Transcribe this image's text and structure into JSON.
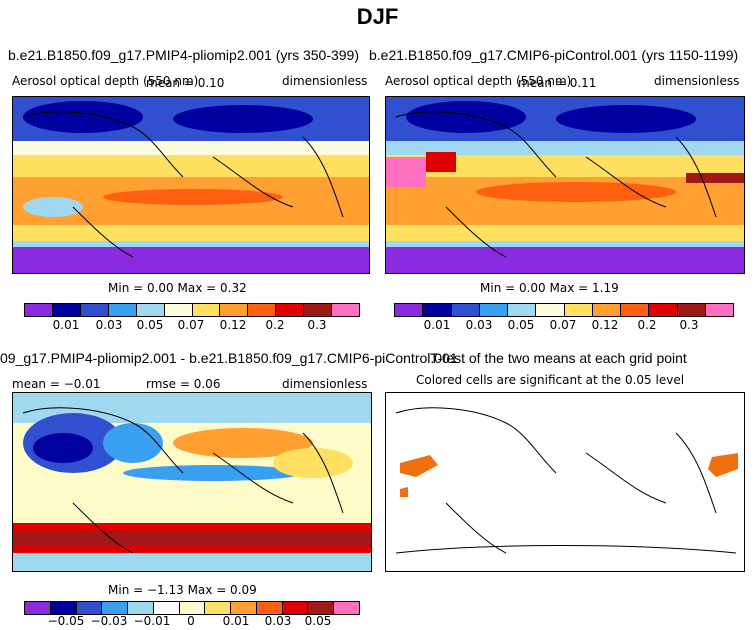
{
  "title": "DJF",
  "panels": [
    {
      "title": "b.e21.B1850.f09_g17.PMIP4-pliomip2.001 (yrs 350-399)",
      "variable": "Aerosol optical depth (550 nm)",
      "mean": "mean =   0.10",
      "units": "dimensionless",
      "stats": "Min =    0.00 Max =    0.32",
      "ticks": [
        "0.01",
        "0.03",
        "0.05",
        "0.07",
        "0.12",
        "0.2",
        "0.3"
      ]
    },
    {
      "title": "b.e21.B1850.f09_g17.CMIP6-piControl.001 (yrs 1150-1199)",
      "variable": "Aerosol optical depth (550 nm)",
      "mean": "mean =   0.11",
      "units": "dimensionless",
      "stats": "Min =    0.00 Max =    1.19",
      "ticks": [
        "0.01",
        "0.03",
        "0.05",
        "0.07",
        "0.12",
        "0.2",
        "0.3"
      ]
    },
    {
      "title": "09_g17.PMIP4-pliomip2.001 - b.e21.B1850.f09_g17.CMIP6-piControl.001",
      "mean": "mean =  −0.01",
      "rmse": "rmse =   0.06",
      "units": "dimensionless",
      "stats": "Min =   −1.13 Max =    0.09",
      "ticks": [
        "−0.05",
        "−0.03",
        "−0.01",
        "0",
        "0.01",
        "0.03",
        "0.05"
      ]
    },
    {
      "title": "T-test of the two means at each grid point",
      "subtitle": "Colored cells are significant at the 0.05 level"
    }
  ],
  "colors": {
    "seq": [
      "#8a2be2",
      "#0000a0",
      "#3050d0",
      "#38a0f0",
      "#a0d8f0",
      "#fffde0",
      "#ffe060",
      "#ffa030",
      "#ff6010",
      "#e00000",
      "#a01818",
      "#ff70c0"
    ],
    "div": [
      "#8a2be2",
      "#0000a0",
      "#3050d0",
      "#38a0f0",
      "#a0d8f0",
      "#ffffff",
      "#fffbc8",
      "#ffe060",
      "#ffa030",
      "#ff6010",
      "#e00000",
      "#a01818",
      "#ff70c0"
    ],
    "sig": "#f07010"
  }
}
